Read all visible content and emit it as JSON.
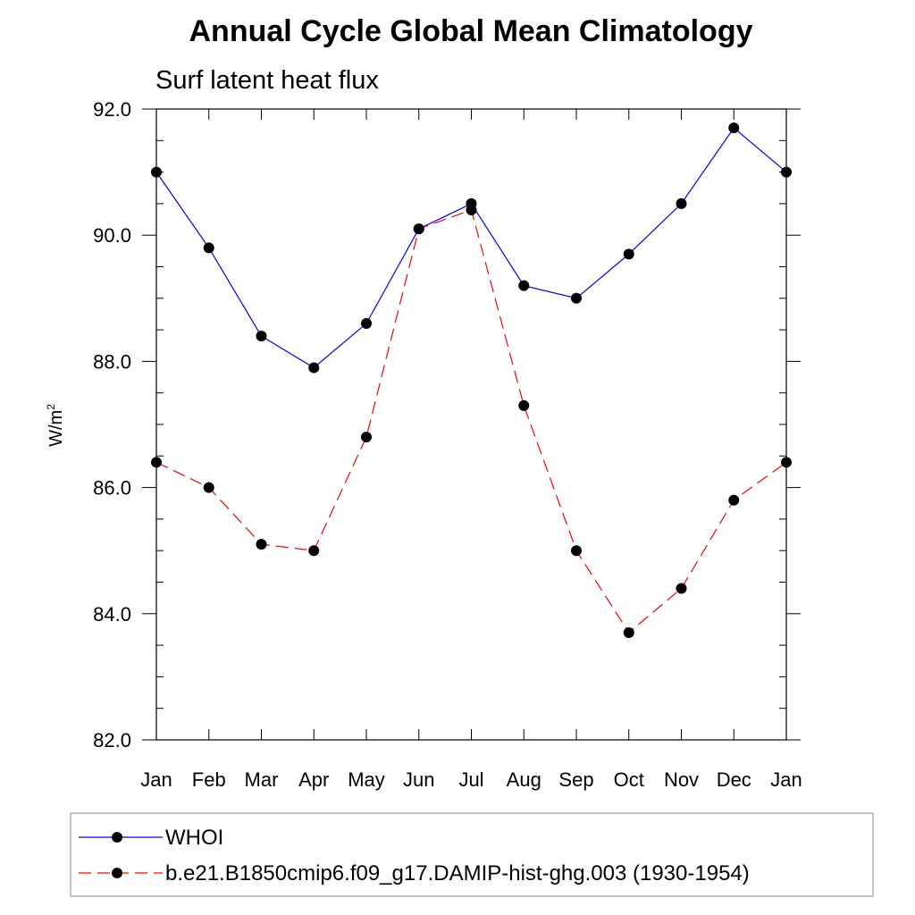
{
  "chart_data": {
    "type": "line",
    "title": "Annual Cycle Global Mean Climatology",
    "subtitle": "Surf latent heat flux",
    "ylabel_base": "W/m",
    "ylabel_exponent": "2",
    "xlabel": "",
    "categories": [
      "Jan",
      "Feb",
      "Mar",
      "Apr",
      "May",
      "Jun",
      "Jul",
      "Aug",
      "Sep",
      "Oct",
      "Nov",
      "Dec",
      "Jan"
    ],
    "ylim": [
      82.0,
      92.0
    ],
    "yticks": [
      "82.0",
      "84.0",
      "86.0",
      "88.0",
      "90.0",
      "92.0"
    ],
    "grid": false,
    "legend_position": "bottom",
    "series": [
      {
        "name": "WHOI",
        "color": "#0000ff",
        "dash": "solid",
        "values": [
          91.0,
          89.8,
          88.4,
          87.9,
          88.6,
          90.1,
          90.5,
          89.2,
          89.0,
          89.7,
          90.5,
          91.7,
          91.0
        ]
      },
      {
        "name": "b.e21.B1850cmip6.f09_g17.DAMIP-hist-ghg.003 (1930-1954)",
        "color": "#ff0000",
        "dash": "dashed",
        "values": [
          86.4,
          86.0,
          85.1,
          85.0,
          86.8,
          90.1,
          90.4,
          87.3,
          85.0,
          83.7,
          84.4,
          85.8,
          86.4
        ]
      }
    ]
  }
}
